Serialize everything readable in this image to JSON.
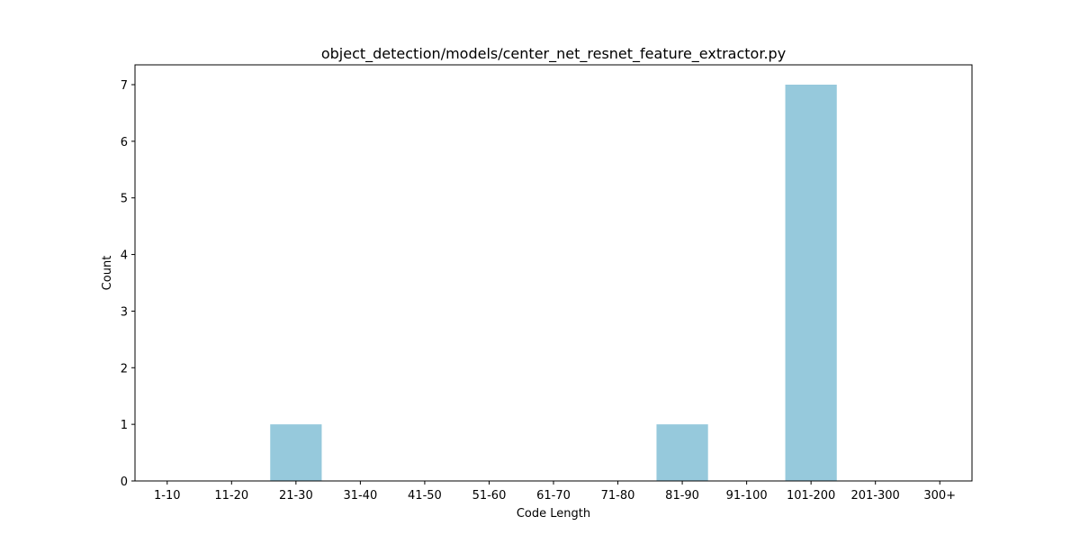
{
  "chart_data": {
    "type": "bar",
    "title": "object_detection/models/center_net_resnet_feature_extractor.py",
    "xlabel": "Code Length",
    "ylabel": "Count",
    "categories": [
      "1-10",
      "11-20",
      "21-30",
      "31-40",
      "41-50",
      "51-60",
      "61-70",
      "71-80",
      "81-90",
      "91-100",
      "101-200",
      "201-300",
      "300+"
    ],
    "values": [
      0,
      0,
      1,
      0,
      0,
      0,
      0,
      0,
      1,
      0,
      7,
      0,
      0
    ],
    "ylim": [
      0,
      7.35
    ],
    "yticks": [
      0,
      1,
      2,
      3,
      4,
      5,
      6,
      7
    ],
    "bar_color": "#96c9dc",
    "grid": false,
    "legend": false
  }
}
